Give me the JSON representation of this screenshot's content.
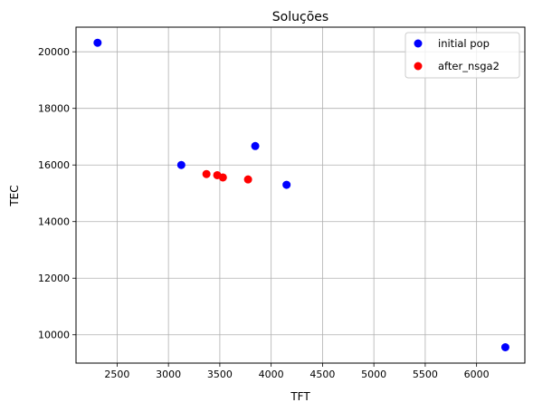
{
  "chart_data": {
    "type": "scatter",
    "title": "Soluções",
    "xlabel": "TFT",
    "ylabel": "TEC",
    "xlim": [
      2100,
      6470
    ],
    "ylim": [
      9000,
      20870
    ],
    "xticks": [
      2500,
      3000,
      3500,
      4000,
      4500,
      5000,
      5500,
      6000,
      6500
    ],
    "xtick_labels": [
      "2500",
      "3000",
      "3500",
      "4000",
      "4500",
      "5000",
      "5500",
      "6000"
    ],
    "yticks": [
      10000,
      12000,
      14000,
      16000,
      18000,
      20000
    ],
    "ytick_labels": [
      "10000",
      "12000",
      "14000",
      "16000",
      "18000",
      "20000"
    ],
    "grid": true,
    "legend_position": "top-right",
    "series": [
      {
        "name": "initial pop",
        "color": "#0000ff",
        "points": [
          {
            "x": 2310,
            "y": 20320
          },
          {
            "x": 3125,
            "y": 16000
          },
          {
            "x": 3845,
            "y": 16670
          },
          {
            "x": 4150,
            "y": 15300
          },
          {
            "x": 6280,
            "y": 9560
          }
        ]
      },
      {
        "name": "after_nsga2",
        "color": "#ff0000",
        "points": [
          {
            "x": 3370,
            "y": 15680
          },
          {
            "x": 3475,
            "y": 15640
          },
          {
            "x": 3530,
            "y": 15560
          },
          {
            "x": 3775,
            "y": 15490
          }
        ]
      }
    ]
  }
}
